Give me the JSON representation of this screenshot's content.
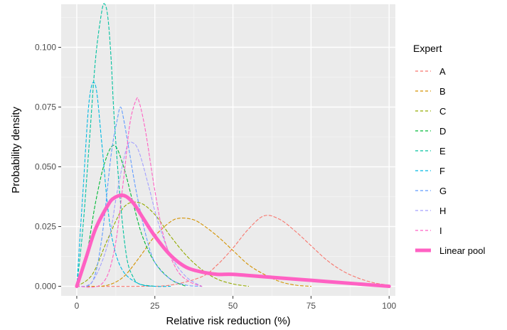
{
  "chart_data": {
    "type": "line",
    "xlabel": "Relative risk reduction (%)",
    "ylabel": "Probability density",
    "xlim": [
      -5,
      102
    ],
    "ylim": [
      -0.004,
      0.118
    ],
    "xticks": [
      0,
      25,
      50,
      75,
      100
    ],
    "xtick_labels": [
      "0",
      "25",
      "50",
      "75",
      "100"
    ],
    "yticks": [
      0.0,
      0.025,
      0.05,
      0.075,
      0.1
    ],
    "ytick_labels": [
      "0.000",
      "0.025",
      "0.050",
      "0.075",
      "0.100"
    ],
    "grid": true,
    "legend_title": "Expert",
    "legend_position": "right",
    "series": [
      {
        "name": "A",
        "color": "#F8766D",
        "dash": "dashed",
        "x": [
          0,
          20,
          30,
          40,
          45,
          50,
          55,
          60,
          65,
          70,
          75,
          80,
          85,
          90,
          95,
          100
        ],
        "y": [
          0,
          0,
          0.0005,
          0.004,
          0.009,
          0.016,
          0.024,
          0.0295,
          0.028,
          0.023,
          0.017,
          0.011,
          0.0065,
          0.0035,
          0.0015,
          0.0005
        ]
      },
      {
        "name": "B",
        "color": "#D39200",
        "dash": "dashed",
        "x": [
          0,
          5,
          10,
          15,
          20,
          25,
          30,
          33,
          37,
          40,
          45,
          50,
          55,
          60,
          65,
          70,
          75
        ],
        "y": [
          0,
          0,
          0.0005,
          0.004,
          0.012,
          0.021,
          0.027,
          0.0285,
          0.028,
          0.026,
          0.021,
          0.015,
          0.009,
          0.005,
          0.002,
          0.0005,
          0
        ]
      },
      {
        "name": "C",
        "color": "#93AA00",
        "dash": "dashed",
        "x": [
          0,
          5,
          10,
          15,
          20,
          25,
          30,
          35,
          40,
          45,
          50,
          55
        ],
        "y": [
          0,
          0.005,
          0.02,
          0.033,
          0.035,
          0.03,
          0.021,
          0.013,
          0.007,
          0.003,
          0.001,
          0
        ]
      },
      {
        "name": "D",
        "color": "#00BA38",
        "dash": "dashed",
        "x": [
          0,
          3,
          6,
          9,
          12,
          15,
          18,
          21,
          25,
          30,
          35
        ],
        "y": [
          0,
          0.012,
          0.035,
          0.052,
          0.059,
          0.05,
          0.035,
          0.021,
          0.01,
          0.003,
          0
        ]
      },
      {
        "name": "E",
        "color": "#00C19F",
        "dash": "dashed",
        "x": [
          0,
          2,
          4,
          6,
          8,
          9,
          10,
          11,
          12,
          14,
          16,
          18,
          20,
          25
        ],
        "y": [
          0,
          0.025,
          0.06,
          0.095,
          0.115,
          0.118,
          0.112,
          0.095,
          0.07,
          0.035,
          0.012,
          0.004,
          0.001,
          0
        ]
      },
      {
        "name": "F",
        "color": "#00B9E3",
        "dash": "dashed",
        "x": [
          0,
          2,
          4,
          6,
          8,
          10,
          12,
          15,
          20,
          25,
          30
        ],
        "y": [
          0,
          0.04,
          0.078,
          0.084,
          0.06,
          0.032,
          0.016,
          0.006,
          0.001,
          0,
          0
        ]
      },
      {
        "name": "G",
        "color": "#619CFF",
        "dash": "dashed",
        "x": [
          0,
          5,
          8,
          11,
          13,
          14,
          15,
          17,
          19,
          22,
          25,
          30,
          35,
          40
        ],
        "y": [
          0,
          0.002,
          0.02,
          0.055,
          0.07,
          0.075,
          0.07,
          0.055,
          0.04,
          0.022,
          0.01,
          0.003,
          0.0005,
          0
        ]
      },
      {
        "name": "H",
        "color": "#A3A0FF",
        "dash": "dashed",
        "x": [
          0,
          5,
          10,
          13,
          16,
          18,
          20,
          23,
          26,
          30,
          35,
          40
        ],
        "y": [
          0,
          0.002,
          0.018,
          0.04,
          0.058,
          0.06,
          0.056,
          0.042,
          0.027,
          0.013,
          0.004,
          0
        ]
      },
      {
        "name": "I",
        "color": "#FF61C3",
        "dash": "dashed",
        "x": [
          0,
          8,
          12,
          15,
          17,
          19,
          20,
          22,
          25,
          28,
          32,
          36,
          40
        ],
        "y": [
          0,
          0.001,
          0.015,
          0.045,
          0.068,
          0.078,
          0.077,
          0.065,
          0.04,
          0.02,
          0.007,
          0.002,
          0
        ]
      },
      {
        "name": "Linear pool",
        "color": "#FF61C3",
        "dash": "solid",
        "width": "thick",
        "x": [
          0,
          3,
          6,
          10,
          12,
          15,
          18,
          21,
          25,
          30,
          35,
          40,
          45,
          50,
          60,
          70,
          80,
          90,
          100
        ],
        "y": [
          0,
          0.012,
          0.024,
          0.034,
          0.037,
          0.038,
          0.035,
          0.029,
          0.021,
          0.013,
          0.008,
          0.006,
          0.005,
          0.005,
          0.004,
          0.003,
          0.002,
          0.001,
          0
        ]
      }
    ]
  }
}
